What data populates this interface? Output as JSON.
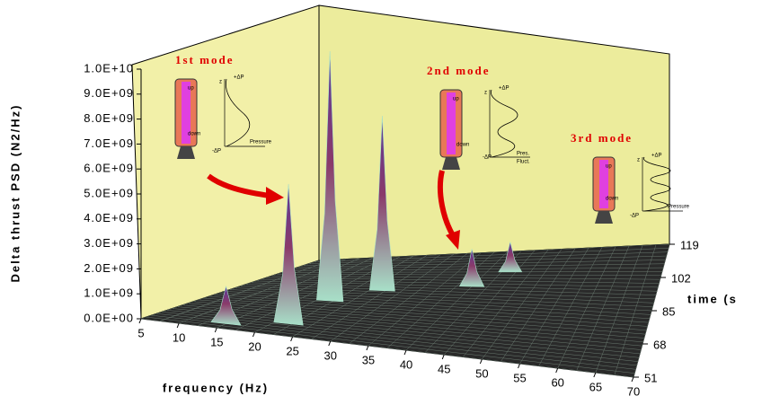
{
  "chart_data": {
    "type": "waterfall3d",
    "ylabel": "Delta thrust PSD (N2/Hz)",
    "xlabel": "frequency (Hz)",
    "zlabel": "time (s",
    "ylim": [
      0,
      10000000000
    ],
    "yticks": [
      {
        "value": 0,
        "label": "0.0E+00"
      },
      {
        "value": 1000000000,
        "label": "1.0E+09"
      },
      {
        "value": 2000000000,
        "label": "2.0E+09"
      },
      {
        "value": 3000000000,
        "label": "3.0E+09"
      },
      {
        "value": 4000000000,
        "label": "4.0E+09"
      },
      {
        "value": 5000000000,
        "label": "5.0E+09"
      },
      {
        "value": 6000000000,
        "label": "6.0E+09"
      },
      {
        "value": 7000000000,
        "label": "7.0E+09"
      },
      {
        "value": 8000000000,
        "label": "8.0E+09"
      },
      {
        "value": 9000000000,
        "label": "9.0E+09"
      },
      {
        "value": 10000000000,
        "label": "1.0E+10"
      }
    ],
    "xlim": [
      5,
      70
    ],
    "xticks": [
      5,
      10,
      15,
      20,
      25,
      30,
      35,
      40,
      45,
      50,
      55,
      60,
      65,
      70
    ],
    "zlim": [
      51,
      119
    ],
    "zticks": [
      51,
      68,
      85,
      102,
      119
    ],
    "peaks": {
      "x": [
        15,
        22,
        22,
        27,
        40,
        44
      ],
      "z": [
        55,
        60,
        80,
        90,
        95,
        105
      ],
      "values": [
        1500000000,
        5600000000,
        10000000000,
        7000000000,
        1500000000,
        1200000000
      ]
    },
    "color": "#a8e0c8",
    "peak_color": "#7a2a6a",
    "annotations": [
      {
        "text": "1st mode",
        "labels": [
          "z",
          "+ΔP",
          "-ΔP",
          "Pressure",
          "up",
          "down"
        ]
      },
      {
        "text": "2nd mode",
        "labels": [
          "z",
          "+ΔP",
          "-ΔP",
          "Pres.",
          "Fluct.",
          "up",
          "down"
        ]
      },
      {
        "text": "3rd mode",
        "labels": [
          "z",
          "+ΔP",
          "-ΔP",
          "Pressure",
          "up",
          "down"
        ]
      }
    ]
  }
}
